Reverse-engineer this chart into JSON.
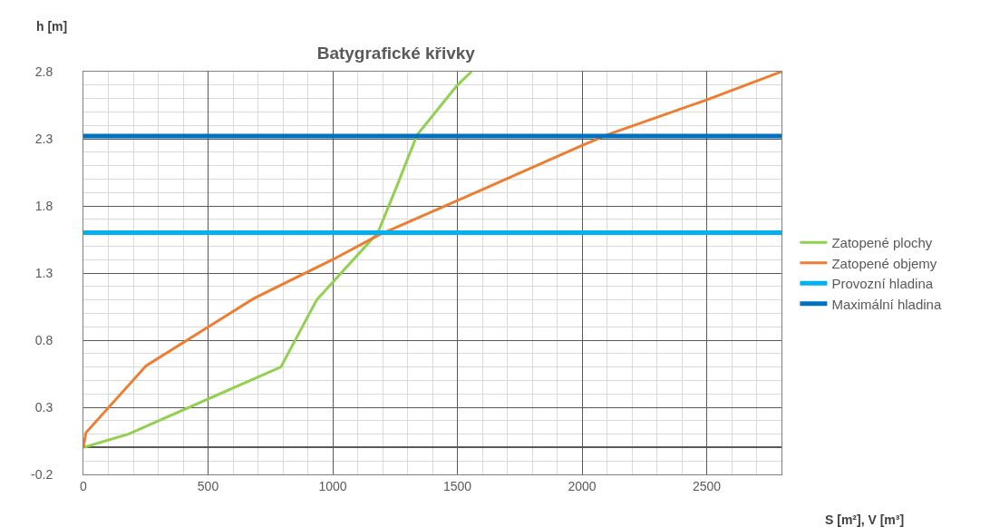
{
  "chart_data": {
    "type": "line",
    "title": "Batygrafické křivky",
    "xlabel": "S [m²], V [m³]",
    "ylabel": "h [m]",
    "series": [
      {
        "name": "Zatopené plochy",
        "color": "#92d050",
        "x": [
          0,
          180,
          792,
          936,
          1181,
          1260,
          1300,
          1339,
          1500,
          1557
        ],
        "values": [
          0,
          0.1,
          0.6,
          1.1,
          1.6,
          1.96,
          2.15,
          2.33,
          2.7,
          2.8
        ]
      },
      {
        "name": "Zatopené objemy",
        "color": "#ed7d31",
        "x": [
          0,
          10,
          252,
          683,
          1000,
          1181,
          1500,
          2000,
          2101,
          2500,
          2800
        ],
        "values": [
          0,
          0.11,
          0.61,
          1.11,
          1.4,
          1.58,
          1.84,
          2.25,
          2.33,
          2.59,
          2.8
        ]
      }
    ],
    "ref_lines": [
      {
        "axis": "y",
        "value": 1.6,
        "label": "Provozní hladina",
        "color": "#00b0f0"
      },
      {
        "axis": "y",
        "value": 2.32,
        "label": "Maximální hladina",
        "color": "#0070c0"
      }
    ],
    "xlim": [
      0,
      2800
    ],
    "xticks": [
      0,
      500,
      1000,
      1500,
      2000,
      2500
    ],
    "ylim": [
      -0.2,
      2.8
    ],
    "yticks": [
      -0.2,
      0.3,
      0.8,
      1.3,
      1.8,
      2.3,
      2.8
    ],
    "grid": true,
    "legend": "right",
    "marker": "none",
    "line_style": "solid"
  }
}
